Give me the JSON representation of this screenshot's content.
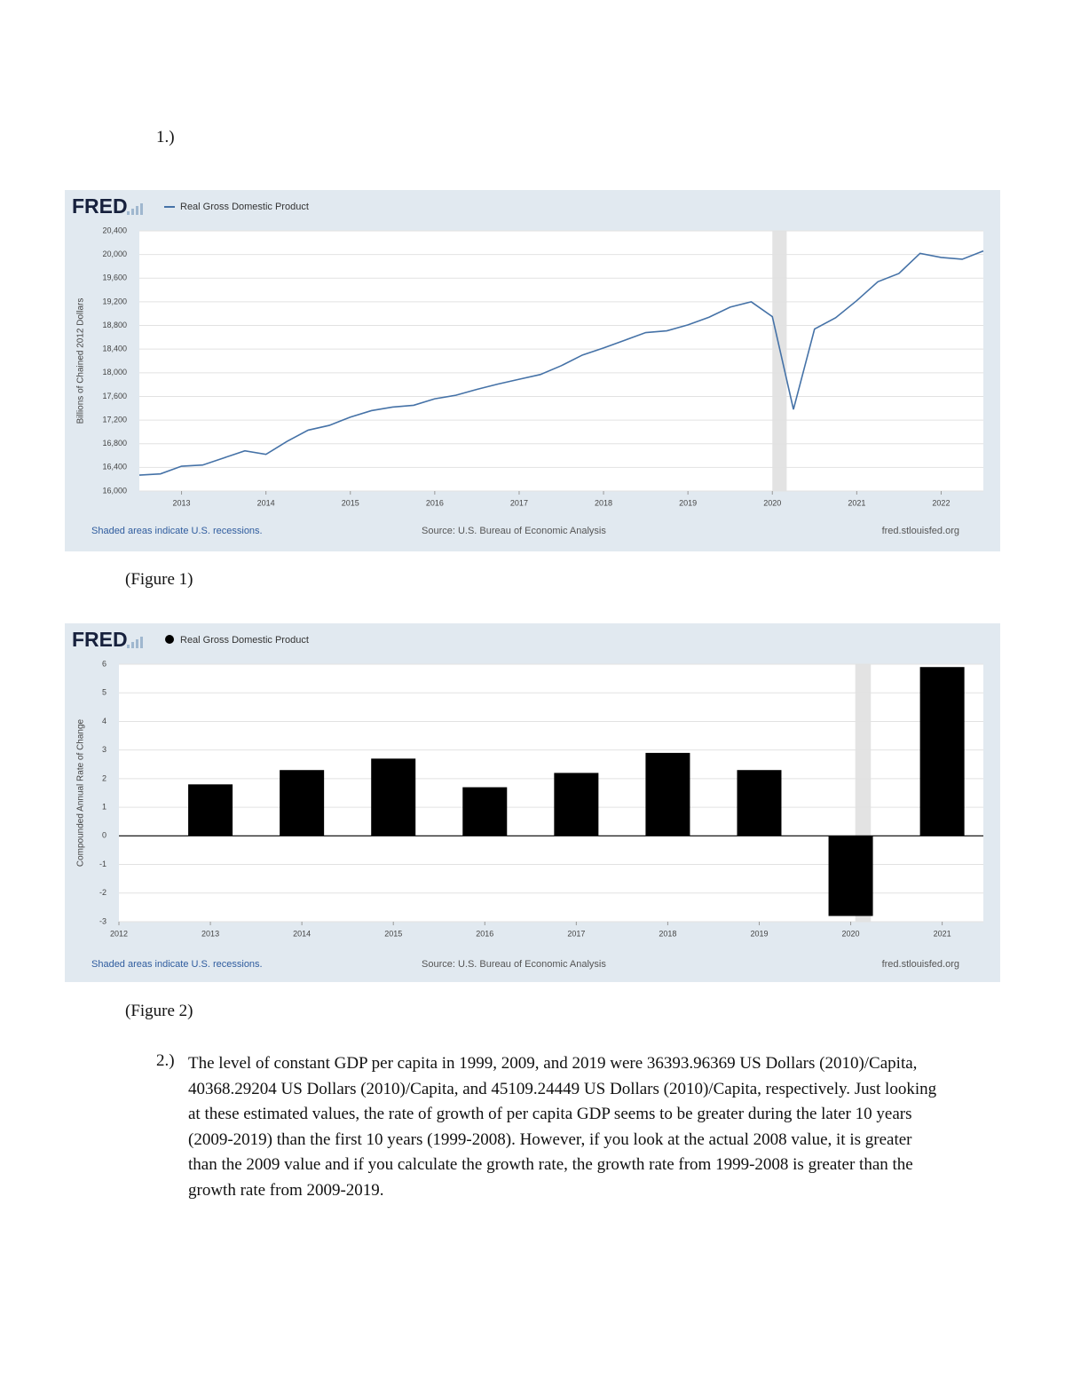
{
  "document": {
    "item1": "1.)",
    "caption1": "(Figure 1)",
    "caption2": "(Figure 2)",
    "item2_number": "2.)",
    "item2_text": "The level of constant GDP per capita in 1999, 2009, and 2019 were 36393.96369 US Dollars (2010)/Capita, 40368.29204 US Dollars (2010)/Capita, and 45109.24449 US Dollars (2010)/Capita, respectively. Just looking at these estimated values, the rate of growth of per capita GDP seems to be greater during the later 10 years (2009-2019) than the first 10 years (1999-2008). However, if you look at the actual 2008 value, it is greater than the 2009 value and if you calculate the growth rate, the growth rate from 1999-2008 is greater than the growth rate from 2009-2019."
  },
  "chart_data": [
    {
      "type": "line",
      "logo": "FRED",
      "ylabel": "Billions of Chained 2012 Dollars",
      "note": "Shaded areas indicate U.S. recessions.",
      "source": "Source: U.S. Bureau of Economic Analysis",
      "site": "fred.stlouisfed.org",
      "x": [
        2012.5,
        2012.75,
        2013,
        2013.25,
        2013.5,
        2013.75,
        2014,
        2014.25,
        2014.5,
        2014.75,
        2015,
        2015.25,
        2015.5,
        2015.75,
        2016,
        2016.25,
        2016.5,
        2016.75,
        2017,
        2017.25,
        2017.5,
        2017.75,
        2018,
        2018.25,
        2018.5,
        2018.75,
        2019,
        2019.25,
        2019.5,
        2019.75,
        2020,
        2020.25,
        2020.5,
        2020.75,
        2021,
        2021.25,
        2021.5,
        2021.75,
        2022,
        2022.25,
        2022.5
      ],
      "series": [
        {
          "name": "Real Gross Domestic Product",
          "color": "#4572a7",
          "values": [
            16270,
            16290,
            16420,
            16440,
            16560,
            16680,
            16620,
            16840,
            17030,
            17110,
            17250,
            17360,
            17420,
            17450,
            17560,
            17620,
            17720,
            17810,
            17890,
            17970,
            18120,
            18300,
            18420,
            18550,
            18680,
            18710,
            18810,
            18940,
            19110,
            19200,
            18950,
            17380,
            18740,
            18930,
            19220,
            19540,
            19680,
            20020,
            19950,
            19920,
            20060
          ]
        }
      ],
      "recession": [
        2020,
        2020.17
      ],
      "xlim": [
        2012.5,
        2022.5
      ],
      "xticks": [
        2013,
        2014,
        2015,
        2016,
        2017,
        2018,
        2019,
        2020,
        2021,
        2022
      ],
      "ylim": [
        16000,
        20400
      ],
      "yticks": [
        {
          "value": 16000,
          "label": "16,000"
        },
        {
          "value": 16400,
          "label": "16,400"
        },
        {
          "value": 16800,
          "label": "16,800"
        },
        {
          "value": 17200,
          "label": "17,200"
        },
        {
          "value": 17600,
          "label": "17,600"
        },
        {
          "value": 18000,
          "label": "18,000"
        },
        {
          "value": 18400,
          "label": "18,400"
        },
        {
          "value": 18800,
          "label": "18,800"
        },
        {
          "value": 19200,
          "label": "19,200"
        },
        {
          "value": 19600,
          "label": "19,600"
        },
        {
          "value": 20000,
          "label": "20,000"
        },
        {
          "value": 20400,
          "label": "20,400"
        }
      ],
      "grid": true
    },
    {
      "type": "bar",
      "logo": "FRED",
      "ylabel": "Compounded Annual Rate of Change",
      "note": "Shaded areas indicate U.S. recessions.",
      "source": "Source: U.S. Bureau of Economic Analysis",
      "site": "fred.stlouisfed.org",
      "x": [
        2013,
        2014,
        2015,
        2016,
        2017,
        2018,
        2019,
        2020,
        2021
      ],
      "series": [
        {
          "name": "Real Gross Domestic Product",
          "color": "#000000",
          "values": [
            1.8,
            2.3,
            2.7,
            1.7,
            2.2,
            2.9,
            2.3,
            -2.8,
            5.9
          ]
        }
      ],
      "recession": [
        2020.05,
        2020.22
      ],
      "xlim": [
        2012,
        2021.45
      ],
      "xticks": [
        2012,
        2013,
        2014,
        2015,
        2016,
        2017,
        2018,
        2019,
        2020,
        2021
      ],
      "ylim": [
        -3,
        6
      ],
      "yticks": [
        -3,
        -2,
        -1,
        0,
        1,
        2,
        3,
        4,
        5,
        6
      ],
      "grid": true
    }
  ]
}
